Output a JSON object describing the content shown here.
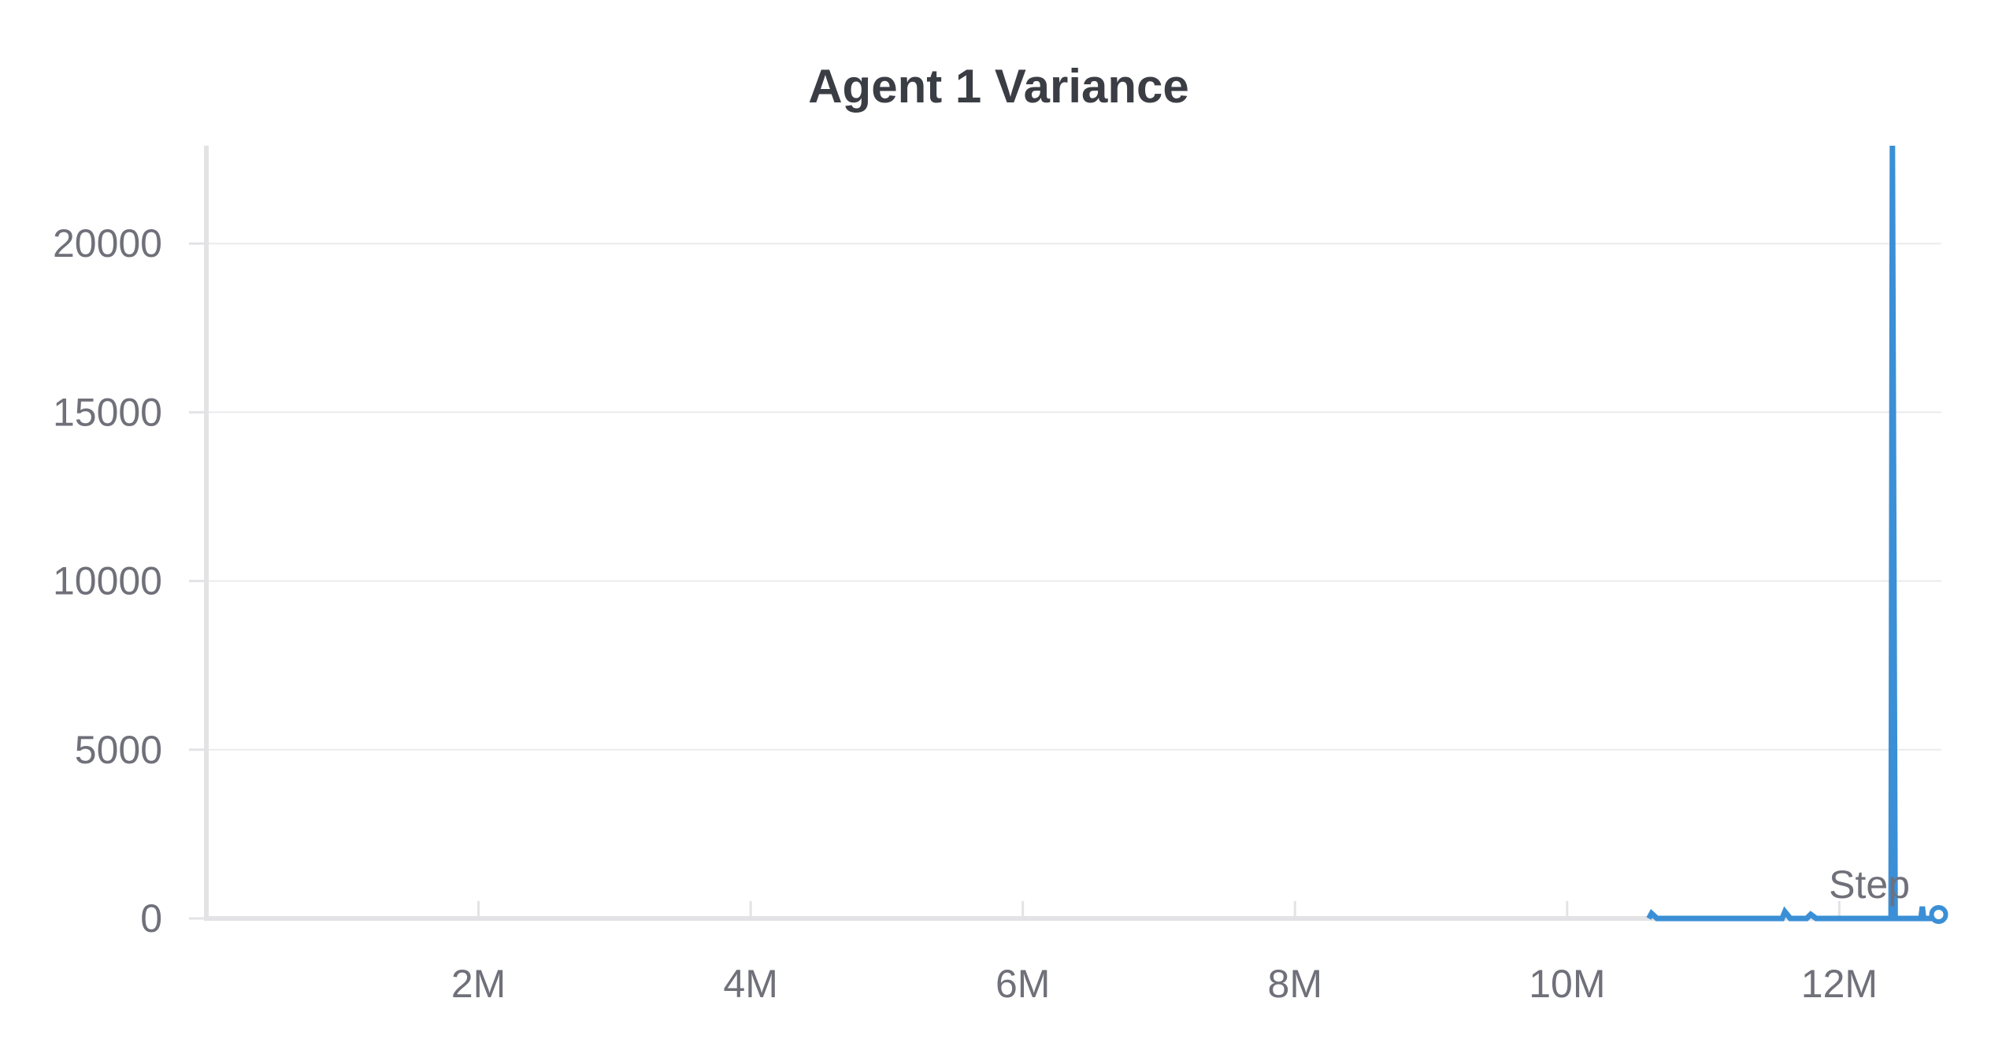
{
  "chart_data": {
    "type": "line",
    "title": "Agent 1 Variance",
    "xlabel": "Step",
    "ylabel": "",
    "xlim": [
      0,
      12750000
    ],
    "ylim": [
      0,
      22900
    ],
    "x_ticks": [
      {
        "value": 2000000,
        "label": "2M"
      },
      {
        "value": 4000000,
        "label": "4M"
      },
      {
        "value": 6000000,
        "label": "6M"
      },
      {
        "value": 8000000,
        "label": "8M"
      },
      {
        "value": 10000000,
        "label": "10M"
      },
      {
        "value": 12000000,
        "label": "12M"
      }
    ],
    "y_ticks": [
      {
        "value": 0,
        "label": "0"
      },
      {
        "value": 5000,
        "label": "5000"
      },
      {
        "value": 10000,
        "label": "10000"
      },
      {
        "value": 15000,
        "label": "15000"
      },
      {
        "value": 20000,
        "label": "20000"
      }
    ],
    "grid": true,
    "series": [
      {
        "color": "#3b8fd6",
        "x": [
          10600000,
          10620000,
          10660000,
          10700000,
          11000000,
          11500000,
          11580000,
          11600000,
          11640000,
          11700000,
          11760000,
          11790000,
          11830000,
          12000000,
          12300000,
          12380000,
          12390000,
          12410000,
          12430000,
          12470000,
          12600000,
          12610000,
          12620000,
          12650000,
          12700000,
          12730000
        ],
        "y": [
          0,
          150,
          0,
          0,
          0,
          0,
          0,
          200,
          0,
          0,
          0,
          120,
          0,
          0,
          0,
          0,
          22900,
          0,
          0,
          0,
          0,
          350,
          0,
          0,
          0,
          0
        ]
      }
    ],
    "endpoint": {
      "x": 12730000,
      "y": 0,
      "color": "#3b8fd6"
    }
  }
}
